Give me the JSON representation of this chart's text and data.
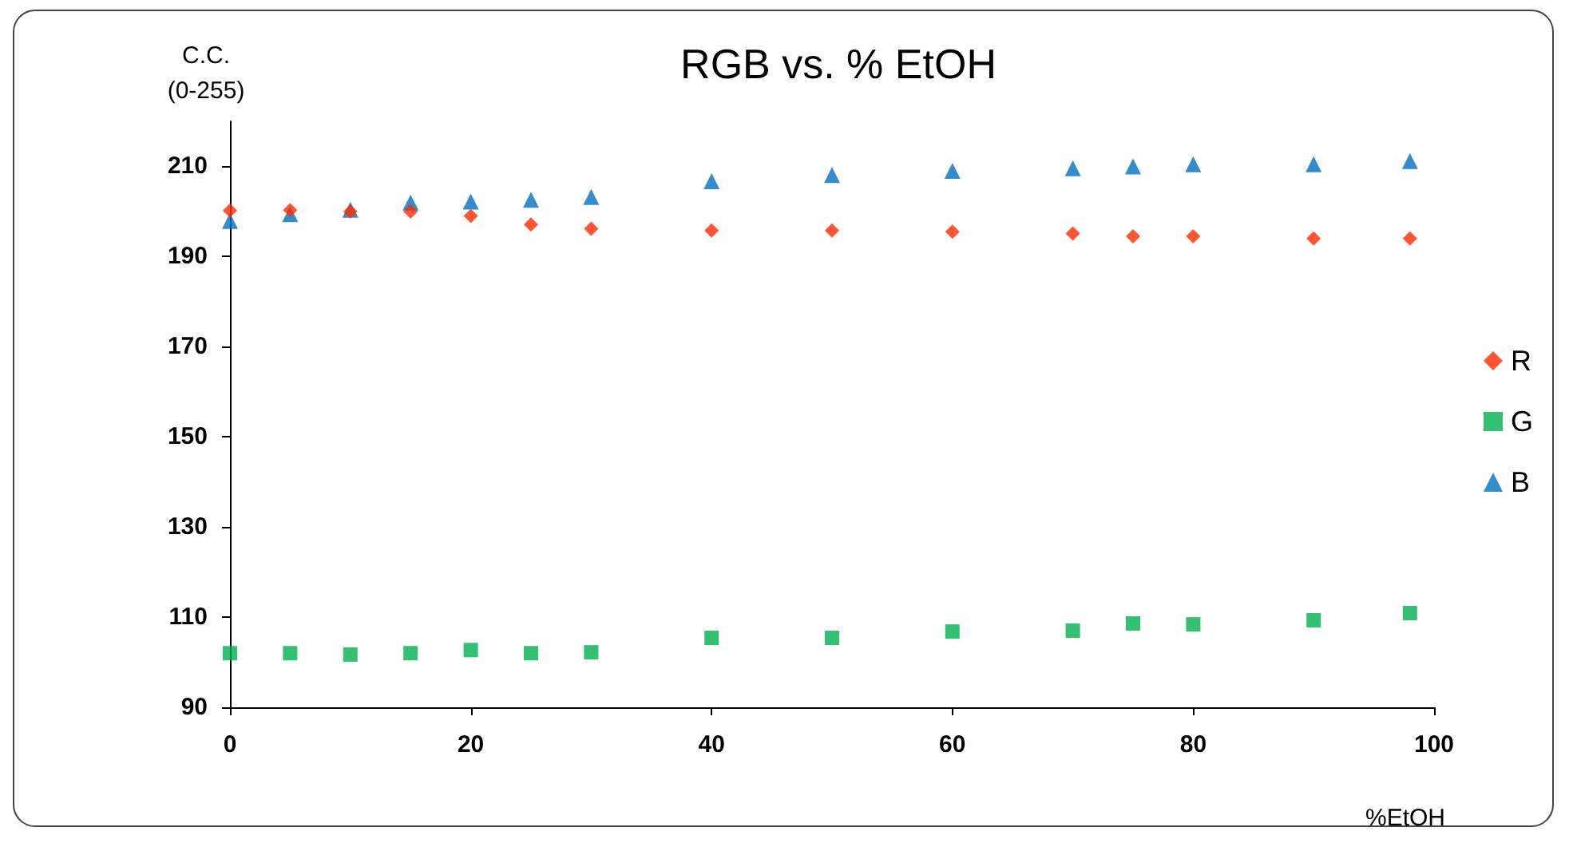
{
  "chart_data": {
    "type": "scatter",
    "title": "RGB vs. % EtOH",
    "xlabel": "%EtOH",
    "ylabel": "C.C.\n(0-255)",
    "x": [
      0,
      5,
      10,
      15,
      20,
      25,
      30,
      40,
      50,
      60,
      70,
      75,
      80,
      90,
      98
    ],
    "series": [
      {
        "name": "R",
        "color": "#ff2a00",
        "marker": "diamond",
        "values": [
          200.2,
          200.3,
          200,
          200,
          199,
          197.1,
          196.2,
          195.8,
          195.8,
          195.5,
          195.1,
          194.5,
          194.5,
          194,
          194
        ]
      },
      {
        "name": "G",
        "color": "#00b050",
        "marker": "square",
        "values": [
          102,
          102,
          101.7,
          102,
          102.7,
          102,
          102.2,
          105.4,
          105.4,
          106.8,
          107,
          108.6,
          108.4,
          109.3,
          110.9
        ]
      },
      {
        "name": "B",
        "color": "#0070c0",
        "marker": "triangle",
        "values": [
          197.9,
          199.4,
          200.4,
          202,
          202.2,
          202.6,
          203.2,
          206.7,
          208.1,
          209,
          209.6,
          210,
          210.5,
          210.5,
          211.2
        ]
      }
    ],
    "xlim": [
      0,
      100
    ],
    "xticks": [
      0,
      20,
      40,
      60,
      80,
      100
    ],
    "ylim": [
      90,
      220
    ],
    "yticks": [
      90,
      110,
      130,
      150,
      170,
      190,
      210
    ],
    "grid": false,
    "legend": "right"
  }
}
